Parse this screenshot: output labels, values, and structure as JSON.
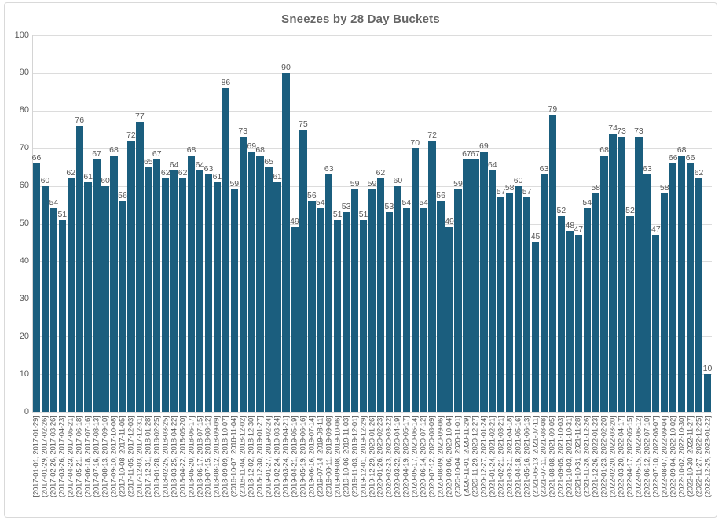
{
  "chart_data": {
    "type": "bar",
    "title": "Sneezes by 28 Day Buckets",
    "xlabel": "",
    "ylabel": "",
    "ylim": [
      0,
      100
    ],
    "yticks": [
      0,
      10,
      20,
      30,
      40,
      50,
      60,
      70,
      80,
      90,
      100
    ],
    "grid": true,
    "legend": "none",
    "value_labels_shown": true,
    "bar_color": "#1b5e7e",
    "text_color": "#595959",
    "title_color": "#666666",
    "grid_color": "#dcdcdc",
    "card_border_color": "#d9d9d9",
    "categories": [
      "[2017-01-01, 2017-01-29]",
      "(2017-01-29, 2017-02-26]",
      "(2017-02-26, 2017-03-26]",
      "(2017-03-26, 2017-04-23]",
      "(2017-04-23, 2017-05-21]",
      "(2017-05-21, 2017-06-18]",
      "(2017-06-18, 2017-07-16]",
      "(2017-07-16, 2017-08-13]",
      "(2017-08-13, 2017-09-10]",
      "(2017-09-10, 2017-10-08]",
      "(2017-10-08, 2017-11-05]",
      "(2017-11-05, 2017-12-03]",
      "(2017-12-03, 2017-12-31]",
      "(2017-12-31, 2018-01-28]",
      "(2018-01-28, 2018-02-25]",
      "(2018-02-25, 2018-03-25]",
      "(2018-03-25, 2018-04-22]",
      "(2018-04-22, 2018-05-20]",
      "(2018-05-20, 2018-06-17]",
      "(2018-06-17, 2018-07-15]",
      "(2018-07-15, 2018-08-12]",
      "(2018-08-12, 2018-09-09]",
      "(2018-09-09, 2018-10-07]",
      "(2018-10-07, 2018-11-04]",
      "(2018-11-04, 2018-12-02]",
      "(2018-12-02, 2018-12-30]",
      "(2018-12-30, 2019-01-27]",
      "(2019-01-27, 2019-02-24]",
      "(2019-02-24, 2019-03-24]",
      "(2019-03-24, 2019-04-21]",
      "(2019-04-21, 2019-05-19]",
      "(2019-05-19, 2019-06-16]",
      "(2019-06-16, 2019-07-14]",
      "(2019-07-14, 2019-08-11]",
      "(2019-08-11, 2019-09-08]",
      "(2019-09-08, 2019-10-06]",
      "(2019-10-06, 2019-11-03]",
      "(2019-11-03, 2019-12-01]",
      "(2019-12-01, 2019-12-29]",
      "(2019-12-29, 2020-01-26]",
      "(2020-01-26, 2020-02-23]",
      "(2020-02-23, 2020-03-22]",
      "(2020-03-22, 2020-04-19]",
      "(2020-04-19, 2020-05-17]",
      "(2020-05-17, 2020-06-14]",
      "(2020-06-14, 2020-07-12]",
      "(2020-07-12, 2020-08-09]",
      "(2020-08-09, 2020-09-06]",
      "(2020-09-06, 2020-10-04]",
      "(2020-10-04, 2020-11-01]",
      "(2020-11-01, 2020-11-29]",
      "(2020-11-29, 2020-12-27]",
      "(2020-12-27, 2021-01-24]",
      "(2021-01-24, 2021-02-21]",
      "(2021-02-21, 2021-03-21]",
      "(2021-03-21, 2021-04-18]",
      "(2021-04-18, 2021-05-16]",
      "(2021-05-16, 2021-06-13]",
      "(2021-06-13, 2021-07-11]",
      "(2021-07-11, 2021-08-08]",
      "(2021-08-08, 2021-09-05]",
      "(2021-09-05, 2021-10-03]",
      "(2021-10-03, 2021-10-31]",
      "(2021-10-31, 2021-11-28]",
      "(2021-11-28, 2021-12-26]",
      "(2021-12-26, 2022-01-23]",
      "(2022-01-23, 2022-02-20]",
      "(2022-02-20, 2022-03-20]",
      "(2022-03-20, 2022-04-17]",
      "(2022-04-17, 2022-05-15]",
      "(2022-05-15, 2022-06-12]",
      "(2022-06-12, 2022-07-10]",
      "(2022-07-10, 2022-08-07]",
      "(2022-08-07, 2022-09-04]",
      "(2022-09-04, 2022-10-02]",
      "(2022-10-02, 2022-10-30]",
      "(2022-10-30, 2022-11-27]",
      "(2022-11-27, 2022-12-25]",
      "(2022-12-25, 2023-01-22]"
    ],
    "values": [
      66,
      60,
      54,
      51,
      62,
      76,
      61,
      67,
      60,
      68,
      56,
      72,
      77,
      65,
      67,
      62,
      64,
      62,
      68,
      64,
      63,
      61,
      86,
      59,
      73,
      69,
      68,
      65,
      61,
      90,
      49,
      75,
      56,
      54,
      63,
      51,
      53,
      59,
      51,
      59,
      62,
      53,
      60,
      54,
      70,
      54,
      72,
      56,
      49,
      59,
      67,
      67,
      69,
      64,
      57,
      58,
      60,
      57,
      45,
      63,
      79,
      52,
      48,
      47,
      54,
      58,
      68,
      74,
      73,
      52,
      73,
      63,
      47,
      58,
      66,
      68,
      66,
      62,
      10
    ]
  }
}
